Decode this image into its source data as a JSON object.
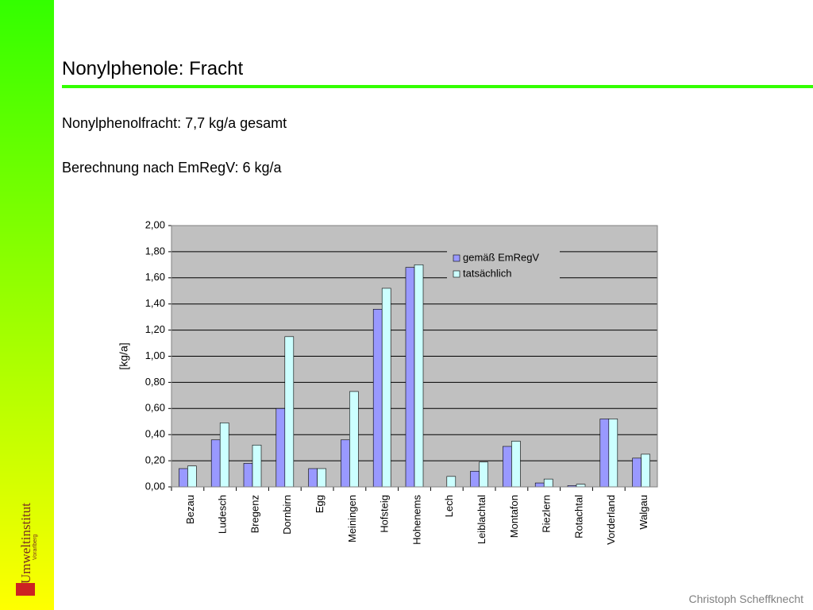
{
  "slide": {
    "title": "Nonylphenole: Fracht",
    "lines": [
      "Nonylphenolfracht: 7,7 kg/a gesamt",
      "Berechnung nach EmRegV: 6 kg/a"
    ],
    "footer": "Christoph Scheffknecht",
    "logo": [
      "Umweltinstitut",
      "Vorarlberg"
    ]
  },
  "chart_data": {
    "type": "bar",
    "y_label": "[kg/a]",
    "categories": [
      "Bezau",
      "Ludesch",
      "Bregenz",
      "Dornbirn",
      "Egg",
      "Meiningen",
      "Hofsteig",
      "Hohenems",
      "Lech",
      "Leiblachtal",
      "Montafon",
      "Riezlern",
      "Rotachtal",
      "Vorderland",
      "Walgau"
    ],
    "series": [
      {
        "name": "gemäß EmRegV",
        "color": "#9999ff",
        "values": [
          0.14,
          0.36,
          0.18,
          0.6,
          0.14,
          0.36,
          1.36,
          1.68,
          0,
          0.12,
          0.31,
          0.03,
          0.01,
          0.52,
          0.22
        ]
      },
      {
        "name": "tatsächlich",
        "color": "#ccffff",
        "values": [
          0.16,
          0.49,
          0.32,
          1.15,
          0.14,
          0.73,
          1.52,
          1.7,
          0.08,
          0.19,
          0.35,
          0.06,
          0.02,
          0.52,
          0.25
        ]
      }
    ],
    "ylim": [
      0,
      2
    ],
    "yticks": [
      {
        "value": 0,
        "label": "0,00"
      },
      {
        "value": 0.2,
        "label": "0,20"
      },
      {
        "value": 0.4,
        "label": "0,40"
      },
      {
        "value": 0.6,
        "label": "0,60"
      },
      {
        "value": 0.8,
        "label": "0,80"
      },
      {
        "value": 1,
        "label": "1,00"
      },
      {
        "value": 1.2,
        "label": "1,20"
      },
      {
        "value": 1.4,
        "label": "1,40"
      },
      {
        "value": 1.6,
        "label": "1,60"
      },
      {
        "value": 1.8,
        "label": "1,80"
      },
      {
        "value": 2,
        "label": "2,00"
      }
    ],
    "grid": true,
    "plot_background": "#c0c0c0",
    "legend": "top-right"
  }
}
